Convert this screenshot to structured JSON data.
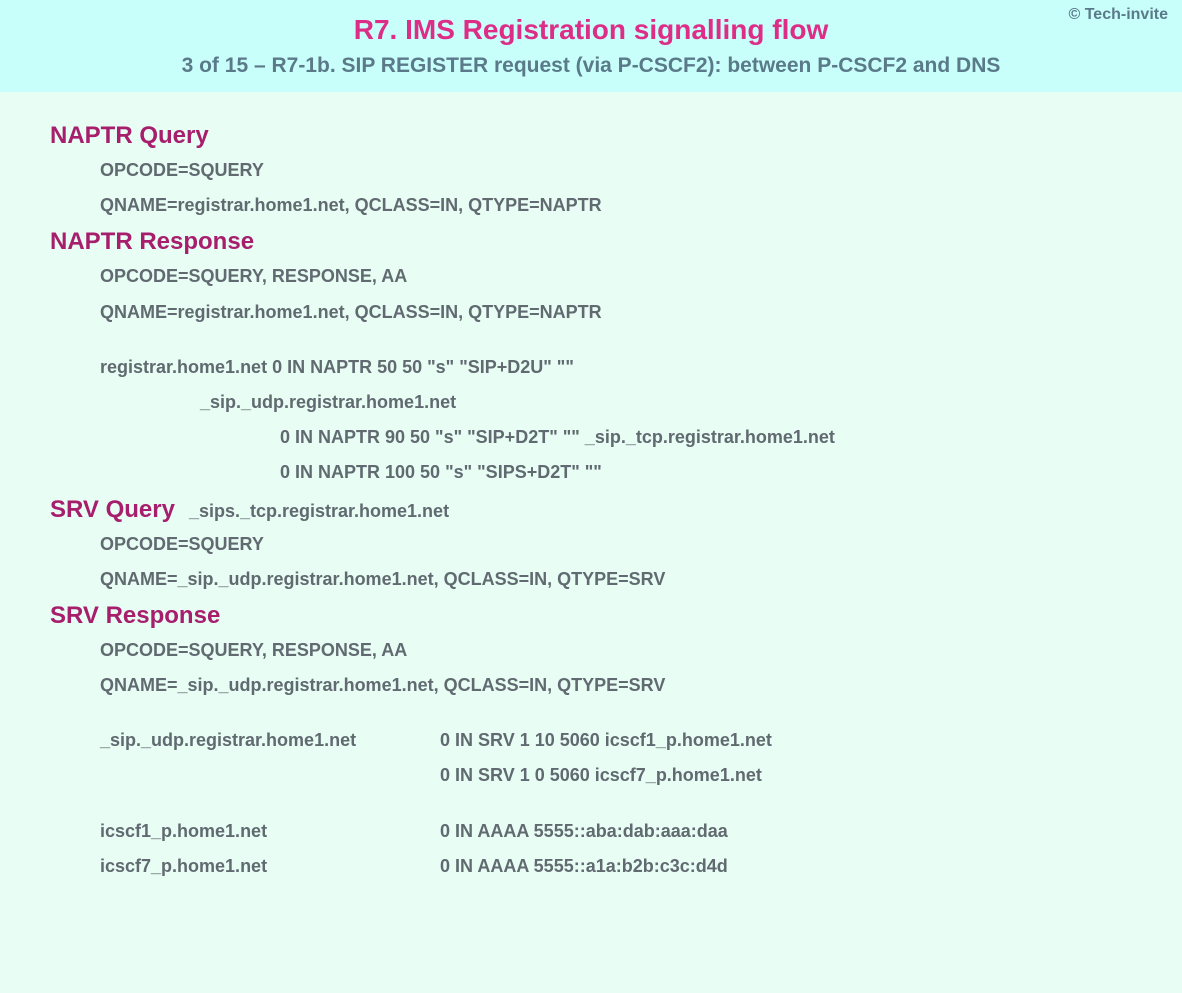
{
  "header": {
    "copyright": "© Tech-invite",
    "title": "R7. IMS Registration signalling flow",
    "subtitle": "3 of 15 – R7-1b. SIP REGISTER request (via P-CSCF2): between P-CSCF2 and DNS"
  },
  "colors": {
    "header_bg": "#c9fffa",
    "body_bg": "#e8fdf4",
    "title_color": "#dd2d87",
    "heading_color": "#a71e6c",
    "subtitle_color": "#5a7a8a",
    "data_color": "#606a70"
  },
  "sections": [
    {
      "heading": "NAPTR Query",
      "lines": [
        "OPCODE=SQUERY",
        "QNAME=registrar.home1.net, QCLASS=IN, QTYPE=NAPTR"
      ]
    },
    {
      "heading": "NAPTR Response",
      "lines": [
        "OPCODE=SQUERY, RESPONSE, AA",
        "QNAME=registrar.home1.net, QCLASS=IN, QTYPE=NAPTR"
      ],
      "records": [
        {
          "indent": 0,
          "text": "registrar.home1.net  0 IN NAPTR 50 50 \"s\" \"SIP+D2U\" \"\""
        },
        {
          "indent": 1,
          "text": "_sip._udp.registrar.home1.net"
        },
        {
          "indent": 2,
          "text": "0 IN NAPTR 90 50 \"s\" \"SIP+D2T\" \"\" _sip._tcp.registrar.home1.net"
        },
        {
          "indent": 2,
          "text": "0 IN NAPTR 100 50 \"s\" \"SIPS+D2T\" \"\""
        }
      ]
    },
    {
      "heading": "SRV Query",
      "heading_inline": "_sips._tcp.registrar.home1.net",
      "lines": [
        "OPCODE=SQUERY",
        "QNAME=_sip._udp.registrar.home1.net, QCLASS=IN, QTYPE=SRV"
      ]
    },
    {
      "heading": "SRV Response",
      "lines": [
        "OPCODE=SQUERY, RESPONSE, AA",
        "QNAME=_sip._udp.registrar.home1.net, QCLASS=IN, QTYPE=SRV"
      ],
      "srv_records": [
        {
          "left": "_sip._udp.registrar.home1.net",
          "right": "0 IN SRV 1 10 5060 icscf1_p.home1.net"
        },
        {
          "left": "",
          "right": "0 IN SRV 1 0 5060 icscf7_p.home1.net"
        }
      ],
      "aaaa_records": [
        {
          "left": "icscf1_p.home1.net",
          "right": "0 IN AAAA 5555::aba:dab:aaa:daa"
        },
        {
          "left": "icscf7_p.home1.net",
          "right": "0 IN AAAA 5555::a1a:b2b:c3c:d4d"
        }
      ]
    }
  ]
}
